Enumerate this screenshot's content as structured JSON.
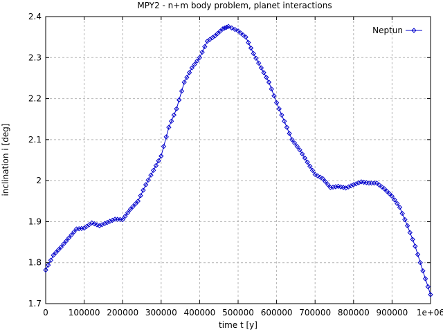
{
  "chart_data": {
    "type": "line",
    "title": "MPY2 - n+m body problem, planet interactions",
    "xlabel": "time t [y]",
    "ylabel": "inclination i [deg]",
    "xlim": [
      0,
      1000000
    ],
    "ylim": [
      1.7,
      2.4
    ],
    "xticks": [
      0,
      100000,
      200000,
      300000,
      400000,
      500000,
      600000,
      700000,
      800000,
      900000,
      1000000
    ],
    "xtick_labels": [
      "0",
      "100000",
      "200000",
      "300000",
      "400000",
      "500000",
      "600000",
      "700000",
      "800000",
      "900000",
      "1e+06"
    ],
    "yticks": [
      1.7,
      1.8,
      1.9,
      2.0,
      2.1,
      2.2,
      2.3,
      2.4
    ],
    "ytick_labels": [
      "1.7",
      "1.8",
      "1.9",
      "2",
      "2.1",
      "2.2",
      "2.3",
      "2.4"
    ],
    "grid": true,
    "legend_position": "top-right",
    "series": [
      {
        "name": "Neptun",
        "color": "#0000cc",
        "marker": "diamond",
        "points": [
          [
            0,
            1.782
          ],
          [
            20000,
            1.818
          ],
          [
            40000,
            1.838
          ],
          [
            60000,
            1.86
          ],
          [
            80000,
            1.882
          ],
          [
            100000,
            1.884
          ],
          [
            120000,
            1.897
          ],
          [
            140000,
            1.89
          ],
          [
            160000,
            1.898
          ],
          [
            180000,
            1.906
          ],
          [
            200000,
            1.905
          ],
          [
            220000,
            1.93
          ],
          [
            240000,
            1.95
          ],
          [
            260000,
            1.99
          ],
          [
            280000,
            2.025
          ],
          [
            300000,
            2.06
          ],
          [
            320000,
            2.13
          ],
          [
            340000,
            2.175
          ],
          [
            360000,
            2.24
          ],
          [
            380000,
            2.275
          ],
          [
            400000,
            2.3
          ],
          [
            420000,
            2.34
          ],
          [
            440000,
            2.353
          ],
          [
            460000,
            2.37
          ],
          [
            475000,
            2.376
          ],
          [
            500000,
            2.365
          ],
          [
            520000,
            2.35
          ],
          [
            540000,
            2.31
          ],
          [
            560000,
            2.275
          ],
          [
            580000,
            2.24
          ],
          [
            600000,
            2.19
          ],
          [
            620000,
            2.145
          ],
          [
            640000,
            2.1
          ],
          [
            660000,
            2.075
          ],
          [
            680000,
            2.045
          ],
          [
            700000,
            2.015
          ],
          [
            720000,
            2.005
          ],
          [
            740000,
            1.983
          ],
          [
            760000,
            1.986
          ],
          [
            780000,
            1.982
          ],
          [
            800000,
            1.99
          ],
          [
            820000,
            1.997
          ],
          [
            840000,
            1.994
          ],
          [
            860000,
            1.994
          ],
          [
            880000,
            1.98
          ],
          [
            900000,
            1.962
          ],
          [
            920000,
            1.935
          ],
          [
            940000,
            1.89
          ],
          [
            960000,
            1.84
          ],
          [
            980000,
            1.78
          ],
          [
            1000000,
            1.722
          ]
        ]
      }
    ]
  }
}
